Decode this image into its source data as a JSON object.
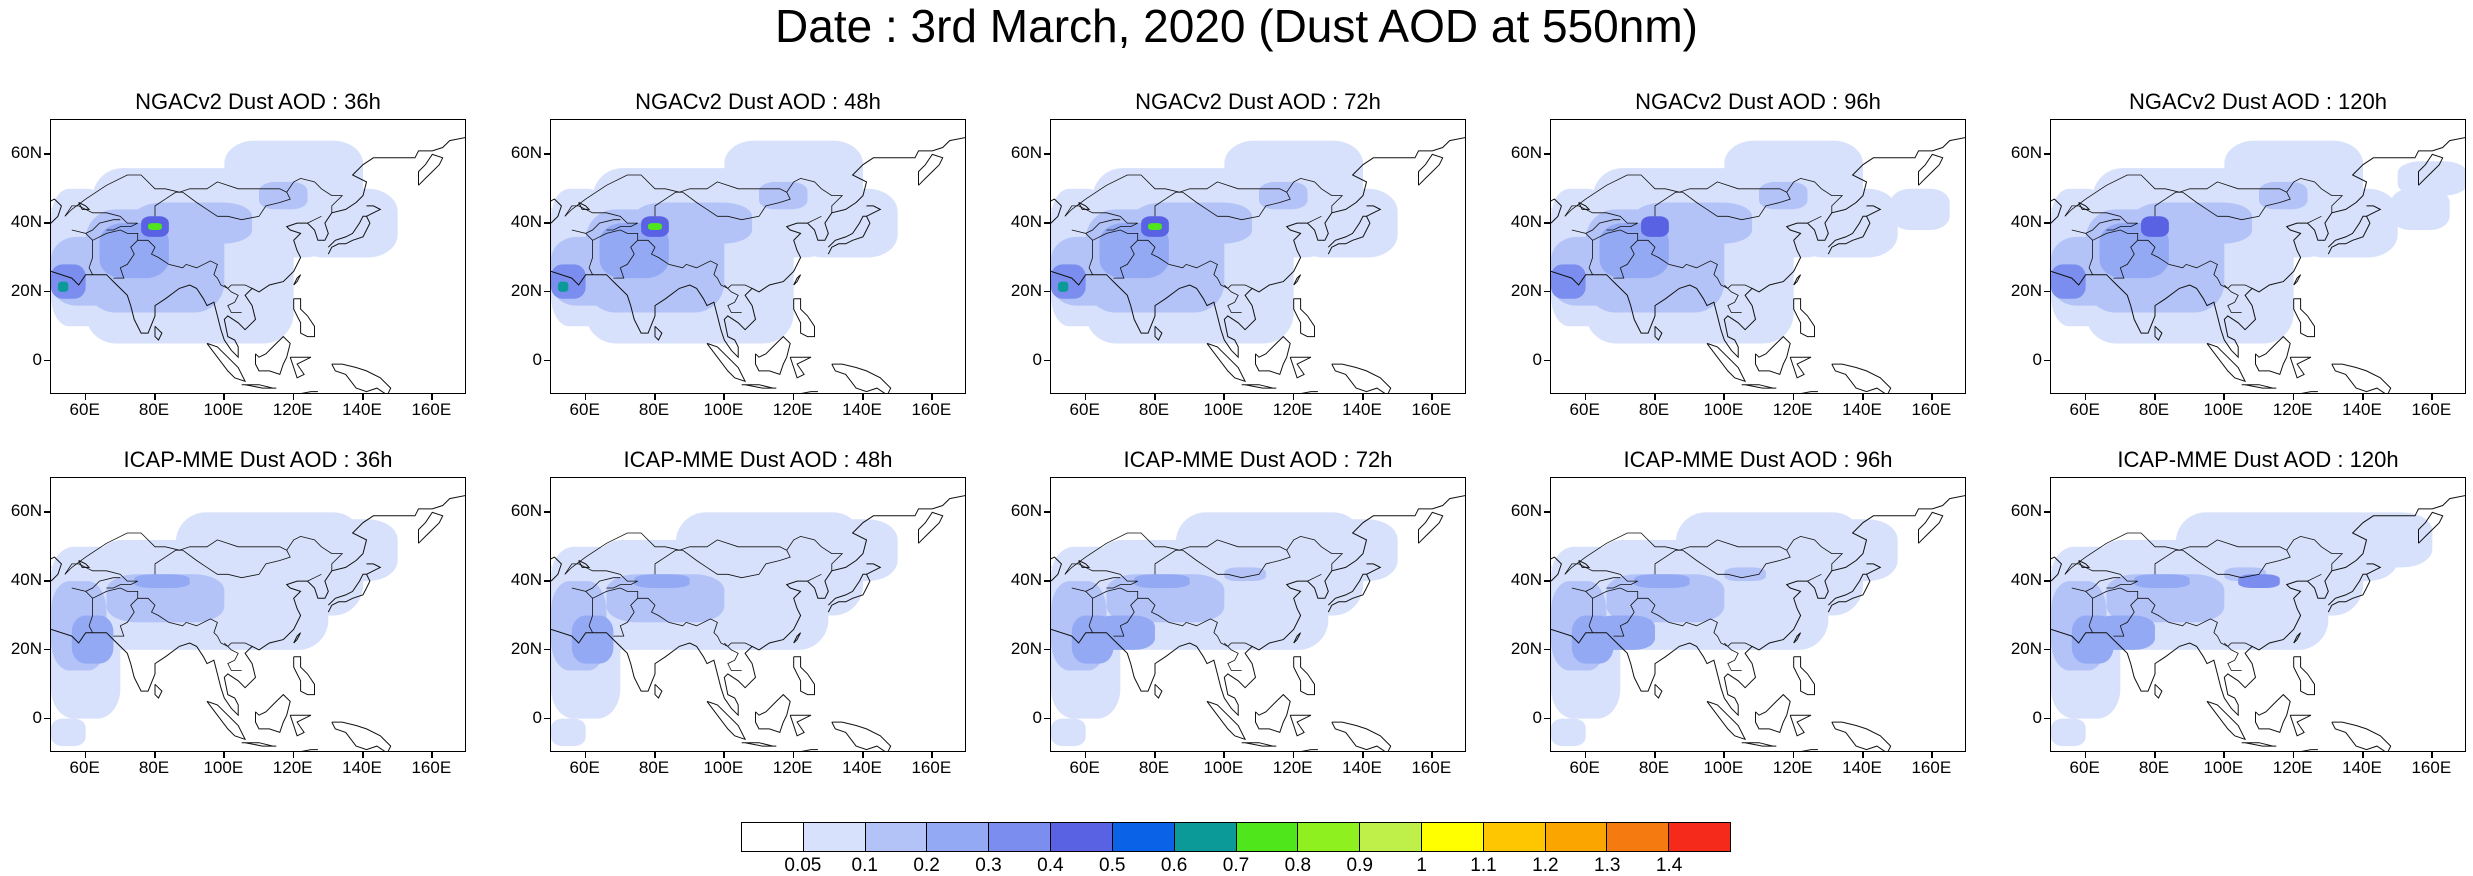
{
  "title": "Date : 3rd March, 2020 (Dust AOD at 550nm)",
  "map_extent": {
    "lon_min": 50,
    "lon_max": 170,
    "lat_min": -10,
    "lat_max": 70
  },
  "y_ticks": [
    "60N",
    "40N",
    "20N",
    "0"
  ],
  "x_ticks": [
    "60E",
    "80E",
    "100E",
    "120E",
    "140E",
    "160E"
  ],
  "panels": [
    {
      "id": "ngac-36",
      "title": "NGACv2 Dust AOD : 36h",
      "model": "ngac"
    },
    {
      "id": "ngac-48",
      "title": "NGACv2 Dust AOD : 48h",
      "model": "ngac"
    },
    {
      "id": "ngac-72",
      "title": "NGACv2 Dust AOD : 72h",
      "model": "ngac"
    },
    {
      "id": "ngac-96",
      "title": "NGACv2 Dust AOD : 96h",
      "model": "ngac"
    },
    {
      "id": "ngac-120",
      "title": "NGACv2 Dust AOD : 120h",
      "model": "ngac"
    },
    {
      "id": "icap-36",
      "title": "ICAP-MME Dust AOD : 36h",
      "model": "icap"
    },
    {
      "id": "icap-48",
      "title": "ICAP-MME Dust AOD : 48h",
      "model": "icap"
    },
    {
      "id": "icap-72",
      "title": "ICAP-MME Dust AOD : 72h",
      "model": "icap"
    },
    {
      "id": "icap-96",
      "title": "ICAP-MME Dust AOD : 96h",
      "model": "icap"
    },
    {
      "id": "icap-120",
      "title": "ICAP-MME Dust AOD : 120h",
      "model": "icap"
    }
  ],
  "colorbar": {
    "labels": [
      "0.05",
      "0.1",
      "0.2",
      "0.3",
      "0.4",
      "0.5",
      "0.6",
      "0.7",
      "0.8",
      "0.9",
      "1",
      "1.1",
      "1.2",
      "1.3",
      "1.4"
    ],
    "colors": [
      "#ffffff",
      "#d8e1fb",
      "#b3c3f7",
      "#93a9f4",
      "#7b8ef0",
      "#5a62e4",
      "#0a62e6",
      "#0c9a98",
      "#4fe61c",
      "#8ef01e",
      "#bff04a",
      "#ffff00",
      "#fdc600",
      "#faa500",
      "#f57a10",
      "#f52a1a"
    ]
  }
}
